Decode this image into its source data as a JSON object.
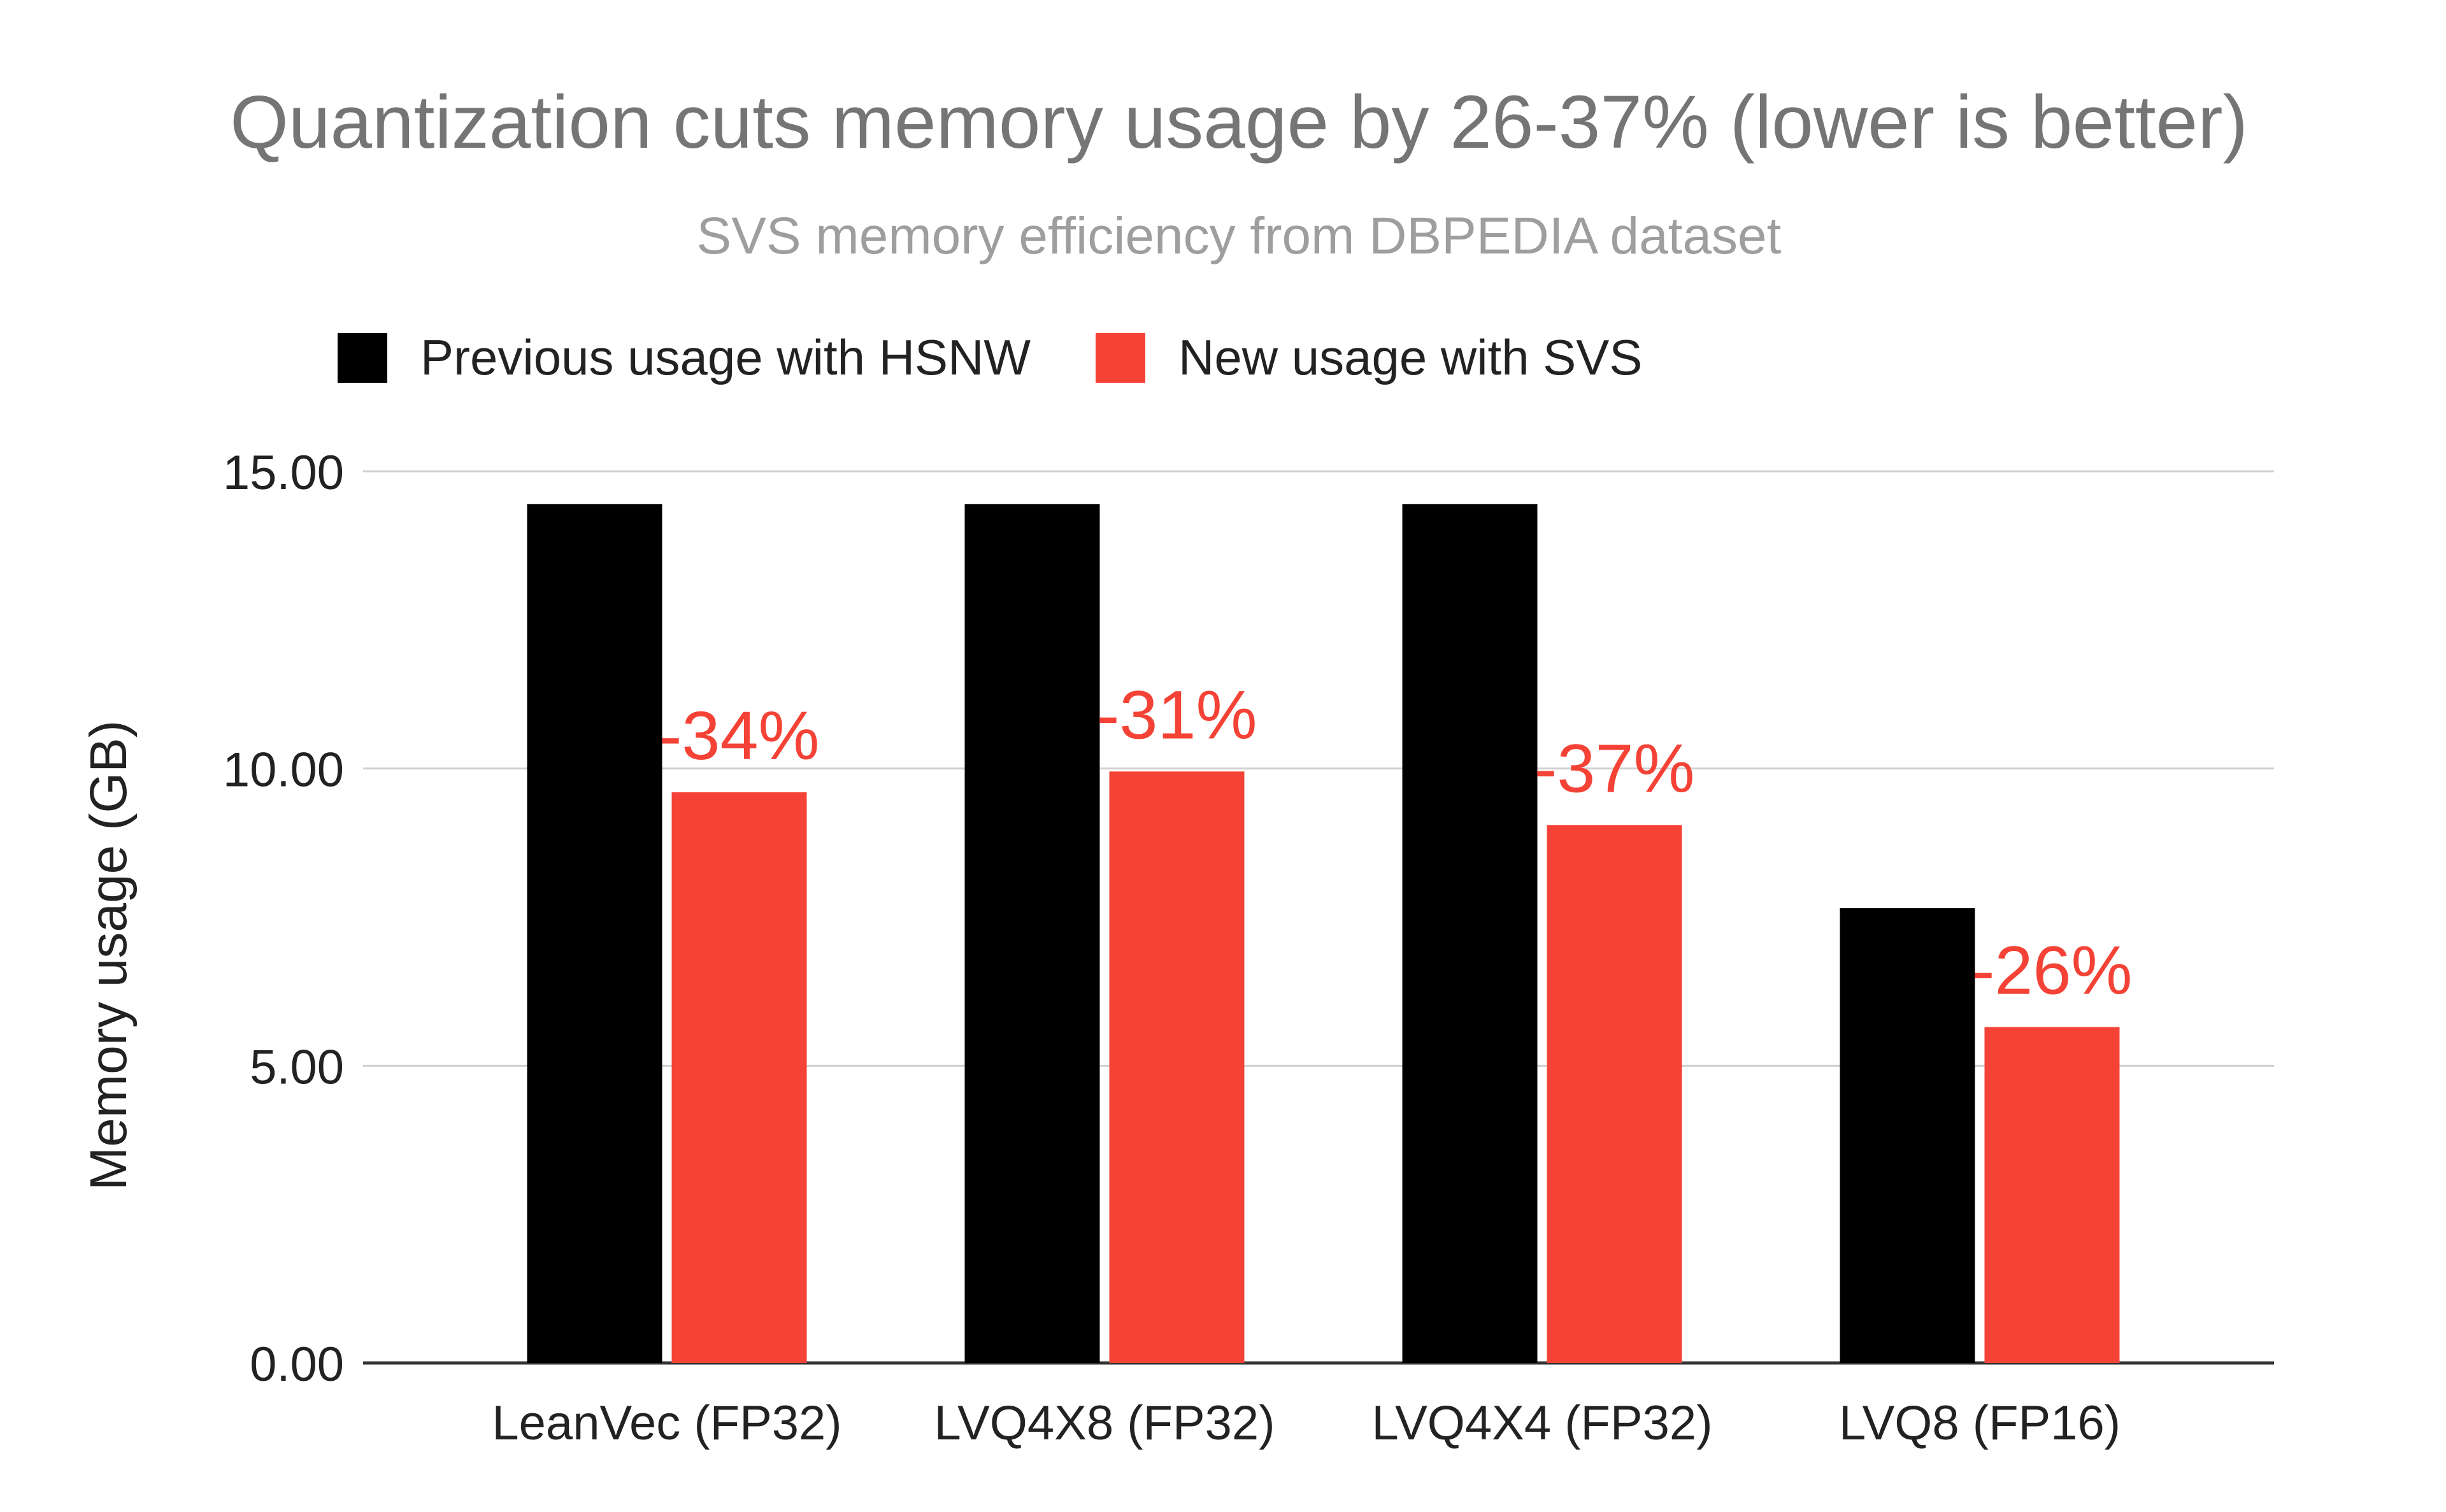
{
  "chart_data": {
    "type": "bar",
    "title": "Quantization cuts memory usage by 26-37% (lower is better)",
    "subtitle": "SVS memory efficiency from DBPEDIA dataset",
    "xlabel": "",
    "ylabel": "Memory usage (GB)",
    "ylim": [
      0,
      15
    ],
    "yticks": [
      "0.00",
      "5.00",
      "10.00",
      "15.00"
    ],
    "grid": true,
    "legend_position": "top-left",
    "categories": [
      "LeanVec (FP32)",
      "LVQ4X8 (FP32)",
      "LVQ4X4 (FP32)",
      "LVQ8 (FP16)"
    ],
    "series": [
      {
        "name": "Previous usage with HSNW",
        "color": "#000000",
        "values": [
          14.45,
          14.45,
          14.45,
          7.65
        ]
      },
      {
        "name": "New usage with SVS",
        "color": "#f44336",
        "values": [
          9.6,
          9.95,
          9.05,
          5.65
        ]
      }
    ],
    "annotations": [
      "-34%",
      "-31%",
      "-37%",
      "-26%"
    ],
    "colors": {
      "title": "#757575",
      "subtitle": "#9e9e9e",
      "text": "#222222",
      "grid": "#d0d0d0",
      "axis": "#333333",
      "annotation": "#f44336"
    }
  }
}
